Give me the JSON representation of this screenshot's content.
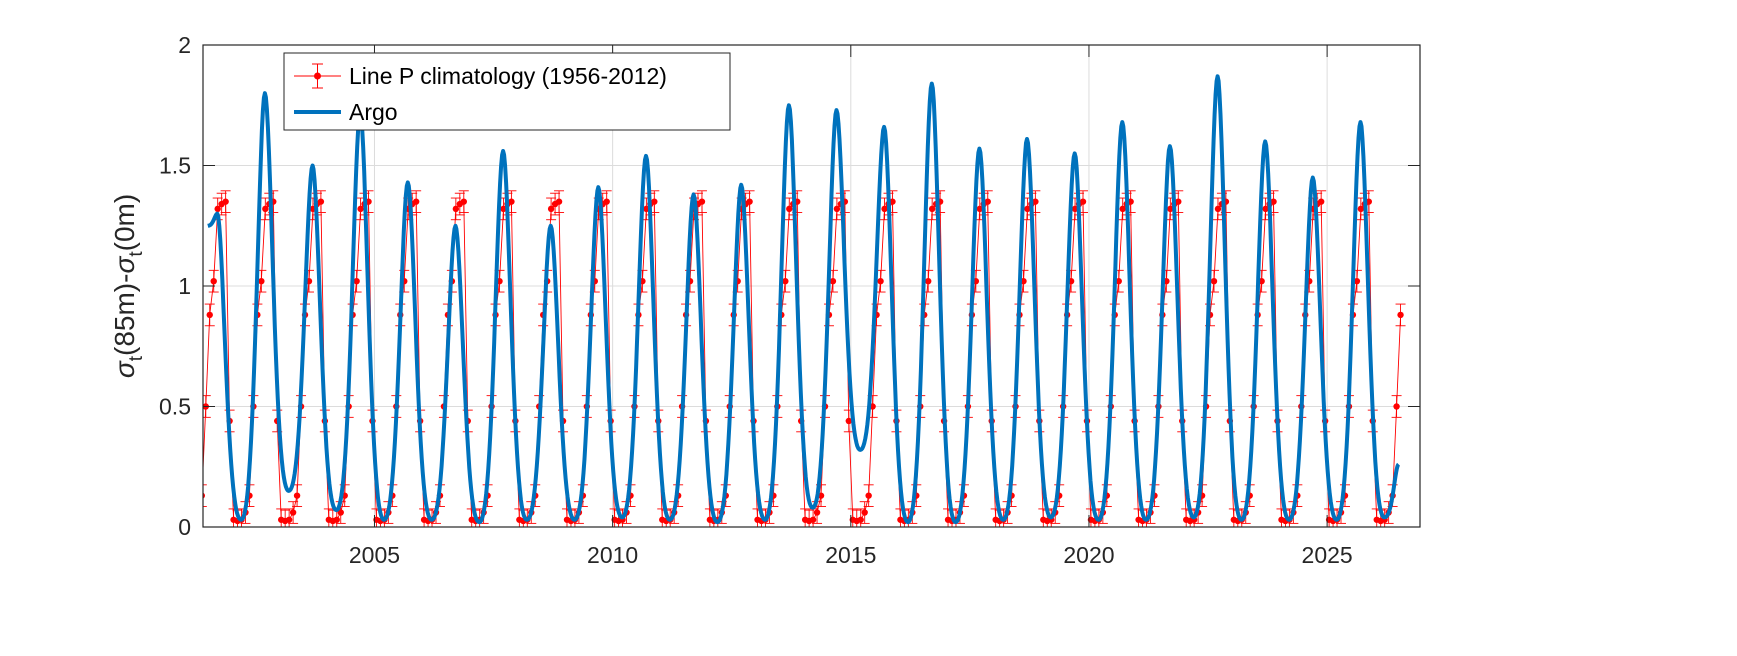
{
  "chart_data": {
    "type": "line",
    "title": "",
    "xlabel": "",
    "ylabel": {
      "sigma": "σ",
      "sub": "t",
      "part1": "(85m)-",
      "part2": "(0m)"
    },
    "xlim": [
      2001.4,
      2026.95
    ],
    "ylim": [
      0,
      2
    ],
    "xticks": [
      2005,
      2010,
      2015,
      2020,
      2025
    ],
    "yticks": [
      0,
      0.5,
      1,
      1.5,
      2
    ],
    "ytick_labels": [
      "0",
      "0.5",
      "1",
      "1.5",
      "2"
    ],
    "grid": true,
    "legend": {
      "position": "top-left",
      "entries": [
        {
          "label": "Line P climatology (1956-2012)",
          "style": "line-marker-errorbar",
          "color": "#ff0000"
        },
        {
          "label": "Argo",
          "style": "thick-line",
          "color": "#0072bd"
        }
      ]
    },
    "series": [
      {
        "name": "Line P climatology (1956-2012)",
        "color": "#ff0000",
        "error": 0.045,
        "monthly_climatology": [
          0.03,
          0.025,
          0.03,
          0.06,
          0.13,
          0.5,
          0.88,
          1.02,
          1.32,
          1.34,
          1.35,
          0.44
        ],
        "start_year": 2001,
        "end_year": 2026,
        "last_month": 6
      },
      {
        "name": "Argo",
        "color": "#0072bd",
        "start": 2001.5,
        "end": 2026.5,
        "annual_peaks": [
          [
            2001,
            1.3
          ],
          [
            2002,
            1.8
          ],
          [
            2003,
            1.5
          ],
          [
            2004,
            1.72
          ],
          [
            2005,
            1.43
          ],
          [
            2006,
            1.25
          ],
          [
            2007,
            1.56
          ],
          [
            2008,
            1.25
          ],
          [
            2009,
            1.41
          ],
          [
            2010,
            1.54
          ],
          [
            2011,
            1.38
          ],
          [
            2012,
            1.42
          ],
          [
            2013,
            1.75
          ],
          [
            2014,
            1.73
          ],
          [
            2015,
            1.66
          ],
          [
            2016,
            1.84
          ],
          [
            2017,
            1.57
          ],
          [
            2018,
            1.61
          ],
          [
            2019,
            1.55
          ],
          [
            2020,
            1.68
          ],
          [
            2021,
            1.58
          ],
          [
            2022,
            1.87
          ],
          [
            2023,
            1.6
          ],
          [
            2024,
            1.45
          ],
          [
            2025,
            1.68
          ]
        ],
        "annual_minima": [
          [
            2002,
            0.03
          ],
          [
            2003,
            0.15
          ],
          [
            2004,
            0.07
          ],
          [
            2005,
            0.03
          ],
          [
            2006,
            0.03
          ],
          [
            2007,
            0.02
          ],
          [
            2008,
            0.03
          ],
          [
            2009,
            0.03
          ],
          [
            2010,
            0.04
          ],
          [
            2011,
            0.03
          ],
          [
            2012,
            0.02
          ],
          [
            2013,
            0.03
          ],
          [
            2014,
            0.08
          ],
          [
            2015,
            0.32
          ],
          [
            2016,
            0.02
          ],
          [
            2017,
            0.02
          ],
          [
            2018,
            0.03
          ],
          [
            2019,
            0.04
          ],
          [
            2020,
            0.03
          ],
          [
            2021,
            0.03
          ],
          [
            2022,
            0.04
          ],
          [
            2023,
            0.03
          ],
          [
            2024,
            0.03
          ],
          [
            2025,
            0.03
          ],
          [
            2026,
            0.04
          ]
        ],
        "end_value": 0.26
      }
    ]
  }
}
